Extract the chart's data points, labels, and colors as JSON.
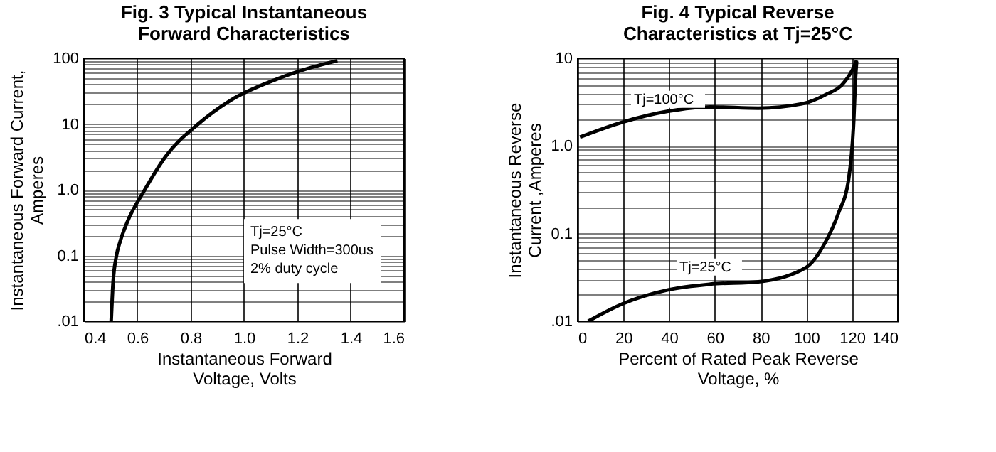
{
  "chart_data": [
    {
      "type": "line",
      "title": "Fig. 3 Typical Instantaneous\nForward Characteristics",
      "xlabel": "Instantaneous Forward\nVoltage, Volts",
      "ylabel": "Instantaneous Forward Current,\nAmperes",
      "log": "y",
      "grid": true,
      "xlim": [
        0.4,
        1.6
      ],
      "xticks": [
        0.4,
        0.6,
        0.8,
        {
          "value": 1.0,
          "label": "1.0"
        },
        1.2,
        1.4,
        1.6
      ],
      "ylim": [
        0.01,
        100
      ],
      "yticks": [
        {
          "value": 0.01,
          "label": ".01"
        },
        {
          "value": 0.02,
          "label": null
        },
        {
          "value": 0.03,
          "label": null
        },
        {
          "value": 0.04,
          "label": null
        },
        {
          "value": 0.05,
          "label": null
        },
        {
          "value": 0.06,
          "label": null
        },
        {
          "value": 0.07,
          "label": null
        },
        {
          "value": 0.08,
          "label": null
        },
        {
          "value": 0.09,
          "label": null
        },
        {
          "value": 0.1,
          "label": "0.1"
        },
        {
          "value": 0.2,
          "label": null
        },
        {
          "value": 0.3,
          "label": null
        },
        {
          "value": 0.4,
          "label": null
        },
        {
          "value": 0.5,
          "label": null
        },
        {
          "value": 0.6,
          "label": null
        },
        {
          "value": 0.7,
          "label": null
        },
        {
          "value": 0.8,
          "label": null
        },
        {
          "value": 0.9,
          "label": null
        },
        {
          "value": 1,
          "label": "1.0"
        },
        {
          "value": 2,
          "label": null
        },
        {
          "value": 3,
          "label": null
        },
        {
          "value": 4,
          "label": null
        },
        {
          "value": 5,
          "label": null
        },
        {
          "value": 6,
          "label": null
        },
        {
          "value": 7,
          "label": null
        },
        {
          "value": 8,
          "label": null
        },
        {
          "value": 9,
          "label": null
        },
        10,
        {
          "value": 20,
          "label": null
        },
        {
          "value": 30,
          "label": null
        },
        {
          "value": 40,
          "label": null
        },
        {
          "value": 50,
          "label": null
        },
        {
          "value": 60,
          "label": null
        },
        {
          "value": 70,
          "label": null
        },
        {
          "value": 80,
          "label": null
        },
        {
          "value": 90,
          "label": null
        },
        100
      ],
      "annotations": [
        "Tj=25°C",
        "Pulse Width=300us",
        "2% duty cycle"
      ],
      "series": [
        {
          "color": "#000000",
          "x": [
            0.502,
            0.509,
            0.522,
            0.535,
            0.562,
            0.628,
            0.706,
            0.828,
            0.95,
            1.116,
            1.25,
            1.35
          ],
          "values": [
            0.01,
            0.038,
            0.1,
            0.16,
            0.32,
            1.0,
            3.2,
            10,
            23,
            47,
            72,
            92
          ]
        }
      ]
    },
    {
      "type": "line",
      "title": "Fig. 4 Typical Reverse\nCharacteristics at Tj=25°C",
      "xlabel": "Percent of Rated Peak Reverse\nVoltage, %",
      "ylabel": "Instantaneous Reverse\nCurrent ,Amperes",
      "log": "y",
      "grid": true,
      "xlim": [
        0,
        140
      ],
      "xticks": [
        0,
        20,
        40,
        60,
        80,
        100,
        120,
        140
      ],
      "ylim": [
        0.01,
        10
      ],
      "yticks": [
        {
          "value": 0.01,
          "label": ".01"
        },
        {
          "value": 0.02,
          "label": null
        },
        {
          "value": 0.03,
          "label": null
        },
        {
          "value": 0.04,
          "label": null
        },
        {
          "value": 0.05,
          "label": null
        },
        {
          "value": 0.06,
          "label": null
        },
        {
          "value": 0.07,
          "label": null
        },
        {
          "value": 0.08,
          "label": null
        },
        {
          "value": 0.09,
          "label": null
        },
        {
          "value": 0.1,
          "label": "0.1"
        },
        {
          "value": 0.2,
          "label": null
        },
        {
          "value": 0.3,
          "label": null
        },
        {
          "value": 0.4,
          "label": null
        },
        {
          "value": 0.5,
          "label": null
        },
        {
          "value": 0.6,
          "label": null
        },
        {
          "value": 0.7,
          "label": null
        },
        {
          "value": 0.8,
          "label": null
        },
        {
          "value": 0.9,
          "label": null
        },
        {
          "value": 1,
          "label": "1.0"
        },
        {
          "value": 2,
          "label": null
        },
        {
          "value": 3,
          "label": null
        },
        {
          "value": 4,
          "label": null
        },
        {
          "value": 5,
          "label": null
        },
        {
          "value": 6,
          "label": null
        },
        {
          "value": 7,
          "label": null
        },
        {
          "value": 8,
          "label": null
        },
        {
          "value": 9,
          "label": null
        },
        10
      ],
      "series": [
        {
          "name": "Tj=100°C",
          "color": "#000000",
          "x": [
            1,
            19.6,
            39.5,
            58,
            79,
            98,
            108,
            117,
            121,
            122
          ],
          "values": [
            1.26,
            1.87,
            2.49,
            2.79,
            2.7,
            3.02,
            3.8,
            5.5,
            8.2,
            9.5
          ]
        },
        {
          "name": "Tj=25°C",
          "color": "#000000",
          "x": [
            4.6,
            19.6,
            39.5,
            58,
            79,
            100,
            108,
            114,
            118.5,
            120.6,
            121.6,
            122
          ],
          "values": [
            0.01,
            0.0158,
            0.0228,
            0.0265,
            0.0282,
            0.0413,
            0.077,
            0.17,
            0.42,
            1.67,
            6.6,
            9.2
          ]
        }
      ]
    }
  ]
}
